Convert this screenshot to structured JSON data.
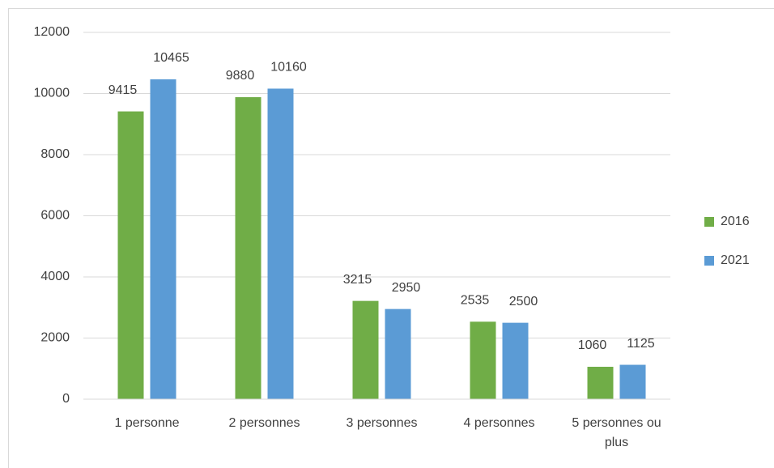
{
  "chart_data": {
    "type": "bar",
    "categories": [
      "1 personne",
      "2 personnes",
      "3 personnes",
      "4 personnes",
      "5 personnes ou plus"
    ],
    "series": [
      {
        "name": "2016",
        "color": "#70ad47",
        "values": [
          9415,
          9880,
          3215,
          2535,
          1060
        ]
      },
      {
        "name": "2021",
        "color": "#5b9bd5",
        "values": [
          10465,
          10160,
          2950,
          2500,
          1125
        ]
      }
    ],
    "ylim": [
      0,
      12000
    ],
    "yticks": [
      0,
      2000,
      4000,
      6000,
      8000,
      10000,
      12000
    ],
    "grid": true,
    "legend": "right"
  }
}
